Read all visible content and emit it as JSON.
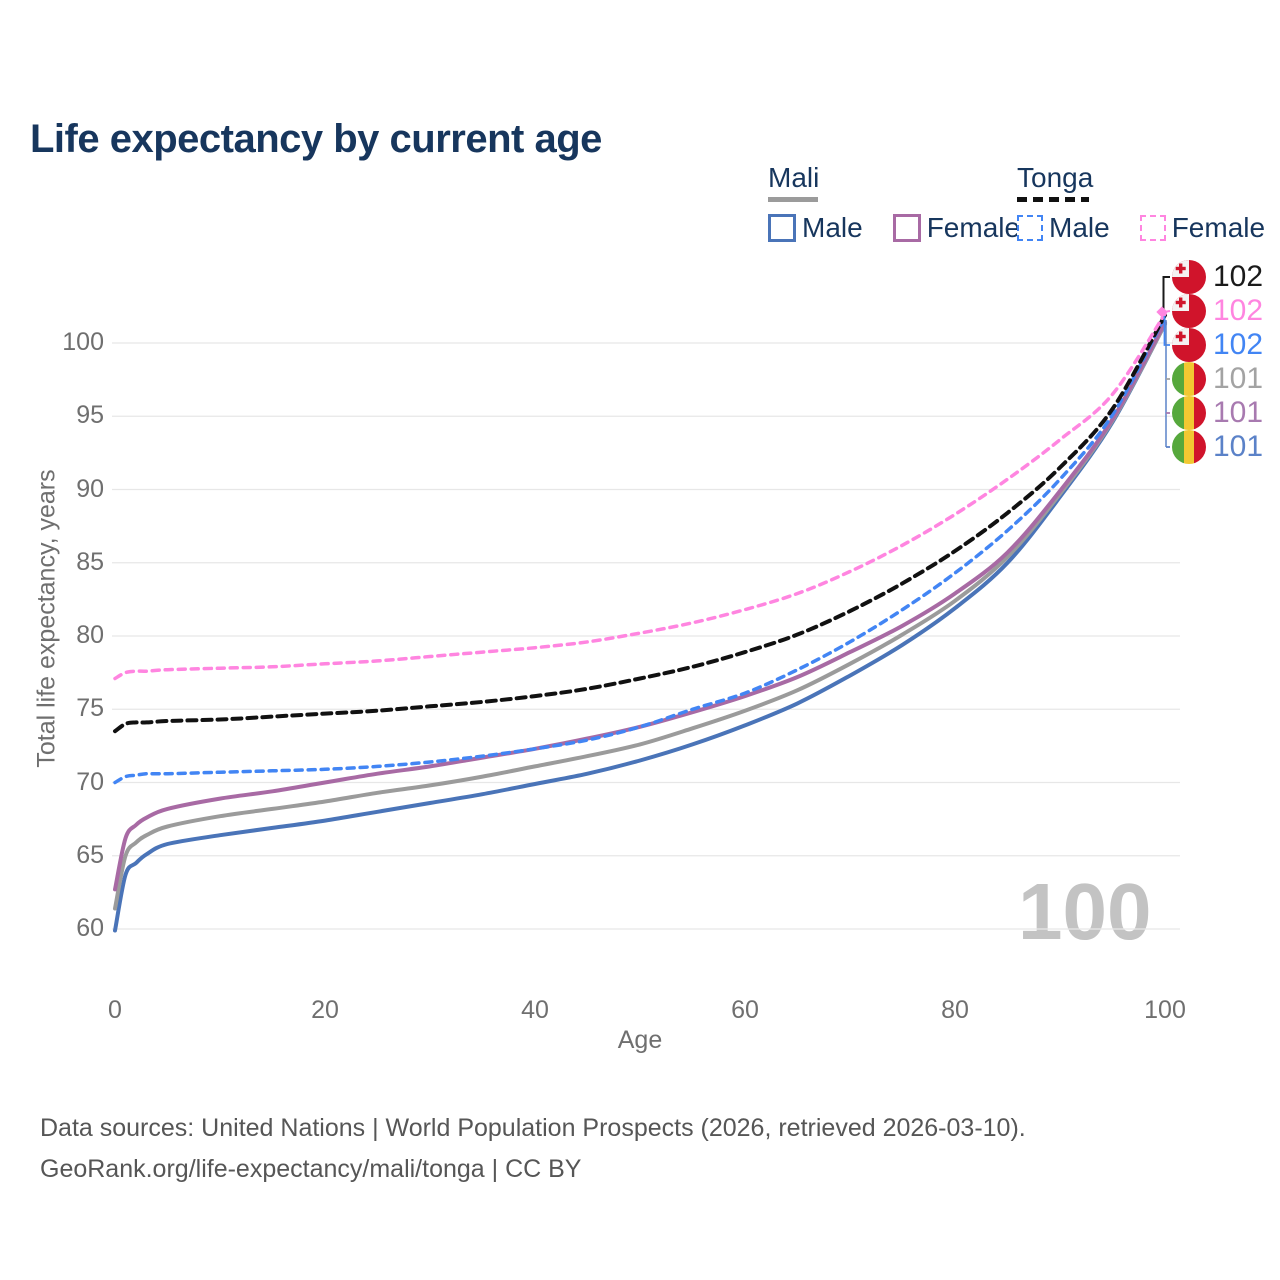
{
  "title": "Life expectancy by current age",
  "watermark": "100",
  "legend": {
    "groups": [
      {
        "country": "Mali",
        "line_style": "solid",
        "underline_color": "#9b9b9b",
        "items": [
          {
            "label": "Male",
            "color": "#4a74b8",
            "dashed": false
          },
          {
            "label": "Female",
            "color": "#a86aa4",
            "dashed": false
          }
        ]
      },
      {
        "country": "Tonga",
        "line_style": "dashed",
        "underline_color": "#111111",
        "items": [
          {
            "label": "Male",
            "color": "#4285f4",
            "dashed": true
          },
          {
            "label": "Female",
            "color": "#ff85e0",
            "dashed": true
          }
        ]
      }
    ]
  },
  "footer": {
    "line1": "Data sources: United Nations | World Population Prospects (2026, retrieved 2026-03-10).",
    "line2": "GeoRank.org/life-expectancy/mali/tonga | CC BY"
  },
  "chart_data": {
    "type": "line",
    "title": "Life expectancy by current age",
    "xlabel": "Age",
    "ylabel": "Total life expectancy, years",
    "xlim": [
      0,
      100
    ],
    "ylim": [
      58,
      104
    ],
    "x_ticks": [
      0,
      20,
      40,
      60,
      80,
      100
    ],
    "y_ticks": [
      60,
      65,
      70,
      75,
      80,
      85,
      90,
      95,
      100
    ],
    "grid": "horizontal",
    "legend_position": "top-right",
    "x": [
      0,
      1,
      2,
      3,
      5,
      10,
      15,
      20,
      25,
      30,
      35,
      40,
      45,
      50,
      55,
      60,
      65,
      70,
      75,
      80,
      85,
      90,
      95,
      100
    ],
    "series": [
      {
        "name": "Mali Male",
        "country": "Mali",
        "sex": "male",
        "color": "#4a74b8",
        "dashed": false,
        "values": [
          59.9,
          63.7,
          64.5,
          65.1,
          65.8,
          66.4,
          66.9,
          67.4,
          68.0,
          68.6,
          69.2,
          69.9,
          70.6,
          71.5,
          72.6,
          73.9,
          75.4,
          77.3,
          79.4,
          81.9,
          85.0,
          89.5,
          94.6,
          101.3
        ]
      },
      {
        "name": "Mali Total",
        "country": "Mali",
        "sex": "total",
        "color": "#9b9b9b",
        "dashed": false,
        "values": [
          61.4,
          65.0,
          65.9,
          66.4,
          67.0,
          67.7,
          68.2,
          68.7,
          69.3,
          69.8,
          70.4,
          71.1,
          71.8,
          72.6,
          73.7,
          74.9,
          76.3,
          78.1,
          80.1,
          82.4,
          85.4,
          89.7,
          94.7,
          101.3
        ]
      },
      {
        "name": "Mali Female",
        "country": "Mali",
        "sex": "female",
        "color": "#a86aa4",
        "dashed": false,
        "values": [
          62.7,
          66.2,
          67.1,
          67.6,
          68.2,
          68.9,
          69.4,
          70.0,
          70.6,
          71.1,
          71.7,
          72.3,
          73.0,
          73.8,
          74.8,
          75.9,
          77.2,
          78.9,
          80.7,
          82.9,
          85.7,
          89.9,
          94.8,
          101.4
        ]
      },
      {
        "name": "Tonga Male",
        "country": "Tonga",
        "sex": "male",
        "color": "#4285f4",
        "dashed": true,
        "values": [
          70.0,
          70.4,
          70.5,
          70.6,
          70.6,
          70.7,
          70.8,
          70.9,
          71.1,
          71.4,
          71.8,
          72.3,
          72.9,
          73.8,
          75.0,
          76.1,
          77.7,
          79.6,
          81.8,
          84.3,
          87.2,
          90.7,
          95.1,
          101.8
        ]
      },
      {
        "name": "Tonga Total",
        "country": "Tonga",
        "sex": "total",
        "color": "#111111",
        "dashed": true,
        "values": [
          73.5,
          74.0,
          74.1,
          74.1,
          74.2,
          74.3,
          74.5,
          74.7,
          74.9,
          75.2,
          75.5,
          75.9,
          76.4,
          77.1,
          77.9,
          78.9,
          80.1,
          81.7,
          83.6,
          85.8,
          88.4,
          91.5,
          95.5,
          101.9
        ]
      },
      {
        "name": "Tonga Female",
        "country": "Tonga",
        "sex": "female",
        "color": "#ff85e0",
        "dashed": true,
        "values": [
          77.1,
          77.5,
          77.6,
          77.6,
          77.7,
          77.8,
          77.9,
          78.1,
          78.3,
          78.6,
          78.9,
          79.2,
          79.6,
          80.2,
          80.9,
          81.8,
          82.9,
          84.4,
          86.2,
          88.3,
          90.7,
          93.4,
          96.5,
          102.0
        ]
      }
    ],
    "right_labels": [
      {
        "value": "102",
        "country": "Tonga",
        "color": "#1a1a1a"
      },
      {
        "value": "102",
        "country": "Tonga",
        "color": "#ff85e0"
      },
      {
        "value": "102",
        "country": "Tonga",
        "color": "#4285f4"
      },
      {
        "value": "101",
        "country": "Mali",
        "color": "#a3a3a3"
      },
      {
        "value": "101",
        "country": "Mali",
        "color": "#a87ab0"
      },
      {
        "value": "101",
        "country": "Mali",
        "color": "#5b82c8"
      }
    ]
  }
}
